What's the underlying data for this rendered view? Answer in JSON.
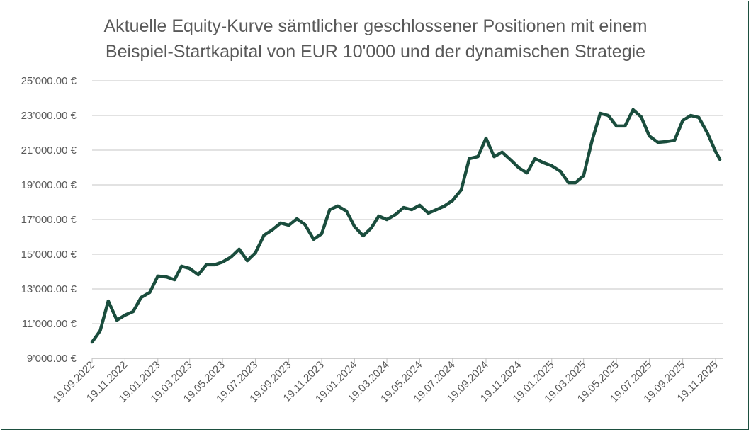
{
  "chart_data": {
    "type": "line",
    "title": "Aktuelle Equity-Kurve sämtlicher geschlossener Positionen mit einem Beispiel-Startkapital von EUR 10'000 und der dynamischen Strategie",
    "title_lines": [
      "Aktuelle Equity-Kurve sämtlicher geschlossener  Positionen mit einem",
      "Beispiel-Startkapital von EUR 10'000 und der dynamischen  Strategie"
    ],
    "xlabel": "",
    "ylabel": "",
    "ylim": [
      9000,
      25000
    ],
    "grid": true,
    "line_color": "#1a4d3d",
    "y_ticks": [
      25000,
      23000,
      21000,
      19000,
      17000,
      15000,
      13000,
      11000,
      9000
    ],
    "y_tick_labels": [
      "25’000.00 €",
      "23’000.00 €",
      "21’000.00 €",
      "19’000.00 €",
      "17’000.00 €",
      "15’000.00 €",
      "13’000.00 €",
      "11’000.00 €",
      "9’000.00 €"
    ],
    "x_tick_labels": [
      "19.09.2022",
      "19.11.2022",
      "19.01.2023",
      "19.03.2023",
      "19.05.2023",
      "19.07.2023",
      "19.09.2023",
      "19.11.2023",
      "19.01.2024",
      "19.03.2024",
      "19.05.2024",
      "19.07.2024",
      "19.09.2024",
      "19.11.2024",
      "19.01.2025",
      "19.03.2025",
      "19.05.2025",
      "19.07.2025",
      "19.09.2025",
      "19.11.2025"
    ],
    "x": [
      "19.09.2022",
      "04.10.2022",
      "19.10.2022",
      "04.11.2022",
      "19.11.2022",
      "04.12.2022",
      "19.12.2022",
      "04.01.2023",
      "19.01.2023",
      "04.02.2023",
      "19.02.2023",
      "04.03.2023",
      "19.03.2023",
      "04.04.2023",
      "19.04.2023",
      "04.05.2023",
      "19.05.2023",
      "04.06.2023",
      "19.06.2023",
      "04.07.2023",
      "19.07.2023",
      "04.08.2023",
      "19.08.2023",
      "04.09.2023",
      "19.09.2023",
      "04.10.2023",
      "19.10.2023",
      "04.11.2023",
      "19.11.2023",
      "04.12.2023",
      "19.12.2023",
      "04.01.2024",
      "19.01.2024",
      "04.02.2024",
      "19.02.2024",
      "04.03.2024",
      "19.03.2024",
      "04.04.2024",
      "19.04.2024",
      "04.05.2024",
      "19.05.2024",
      "04.06.2024",
      "19.06.2024",
      "04.07.2024",
      "19.07.2024",
      "04.08.2024",
      "19.08.2024",
      "04.09.2024",
      "19.09.2024",
      "04.10.2024",
      "19.10.2024",
      "04.11.2024",
      "19.11.2024",
      "04.12.2024",
      "19.12.2024",
      "04.01.2025",
      "19.01.2025",
      "04.02.2025",
      "19.02.2025",
      "04.03.2025",
      "19.03.2025",
      "04.04.2025",
      "19.04.2025",
      "04.05.2025",
      "19.05.2025",
      "04.06.2025",
      "19.06.2025",
      "04.07.2025",
      "19.07.2025",
      "04.08.2025",
      "19.08.2025",
      "04.09.2025",
      "19.09.2025",
      "04.10.2025",
      "19.10.2025",
      "04.11.2025",
      "19.11.2025",
      "27.11.2025"
    ],
    "series": [
      {
        "values": [
          9940,
          10590,
          12300,
          11200,
          11490,
          11690,
          12510,
          12800,
          13740,
          13690,
          13530,
          14310,
          14180,
          13820,
          14390,
          14390,
          14550,
          14840,
          15290,
          14630,
          15080,
          16100,
          16390,
          16800,
          16670,
          17040,
          16710,
          15860,
          16180,
          17570,
          17780,
          17490,
          16590,
          16060,
          16510,
          17200,
          17000,
          17290,
          17690,
          17570,
          17820,
          17370,
          17570,
          17780,
          18100,
          18710,
          20510,
          20630,
          21690,
          20630,
          20880,
          20430,
          19980,
          19690,
          20510,
          20270,
          20100,
          19780,
          19120,
          19120,
          19530,
          21570,
          23120,
          23000,
          22390,
          22390,
          23330,
          22920,
          21820,
          21450,
          21490,
          21570,
          22710,
          23000,
          22880,
          21980,
          20920,
          20470
        ]
      }
    ]
  }
}
